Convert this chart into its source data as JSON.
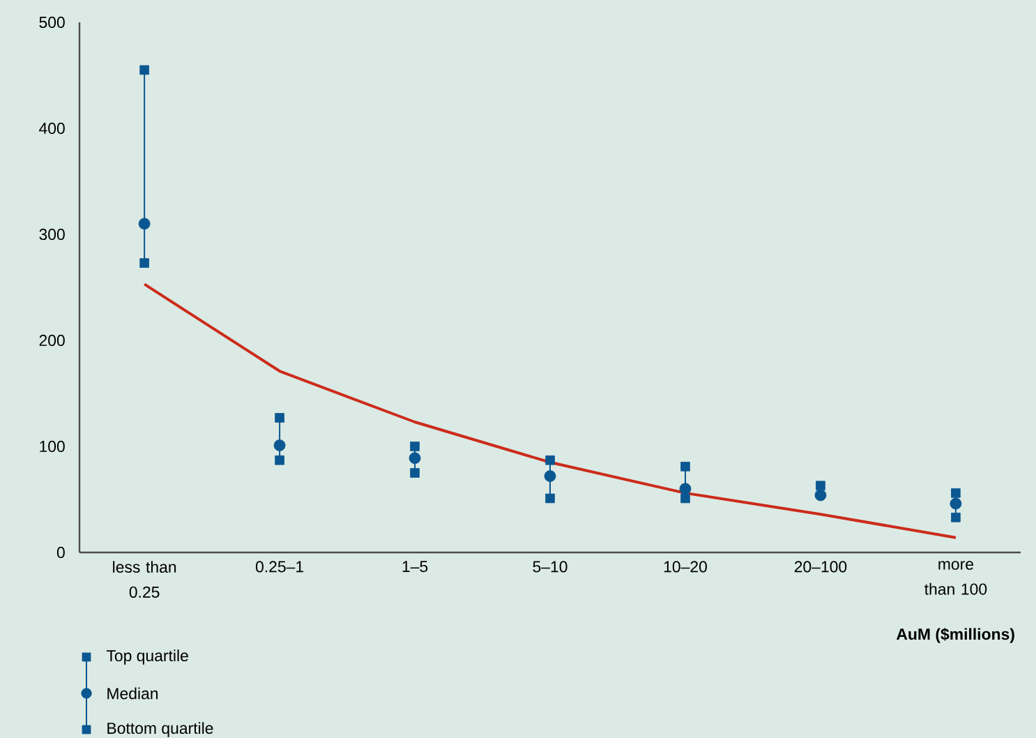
{
  "chart_data": {
    "type": "scatter",
    "xlabel": "AuM ($millions)",
    "categories": [
      "less than 0.25",
      "0.25–1",
      "1–5",
      "5–10",
      "10–20",
      "20–100",
      "more than 100"
    ],
    "ylim": [
      0,
      500
    ],
    "yticks": [
      0,
      100,
      200,
      300,
      400,
      500
    ],
    "grid": false,
    "legend": "bottom left",
    "series": [
      {
        "name": "Top quartile",
        "color": "#0b5791",
        "marker": "square",
        "values": [
          455,
          127,
          100,
          87,
          81,
          63,
          56
        ]
      },
      {
        "name": "Median",
        "color": "#0b5791",
        "marker": "circle",
        "values": [
          310,
          101,
          89,
          72,
          60,
          54,
          46
        ]
      },
      {
        "name": "Bottom quartile",
        "color": "#0b5791",
        "marker": "square",
        "values": [
          273,
          87,
          75,
          51,
          51,
          null,
          33
        ]
      },
      {
        "type": "line",
        "color": "#cc2b1b",
        "marker": "none",
        "values": [
          253,
          171,
          123,
          85,
          56,
          36,
          14
        ]
      }
    ]
  }
}
